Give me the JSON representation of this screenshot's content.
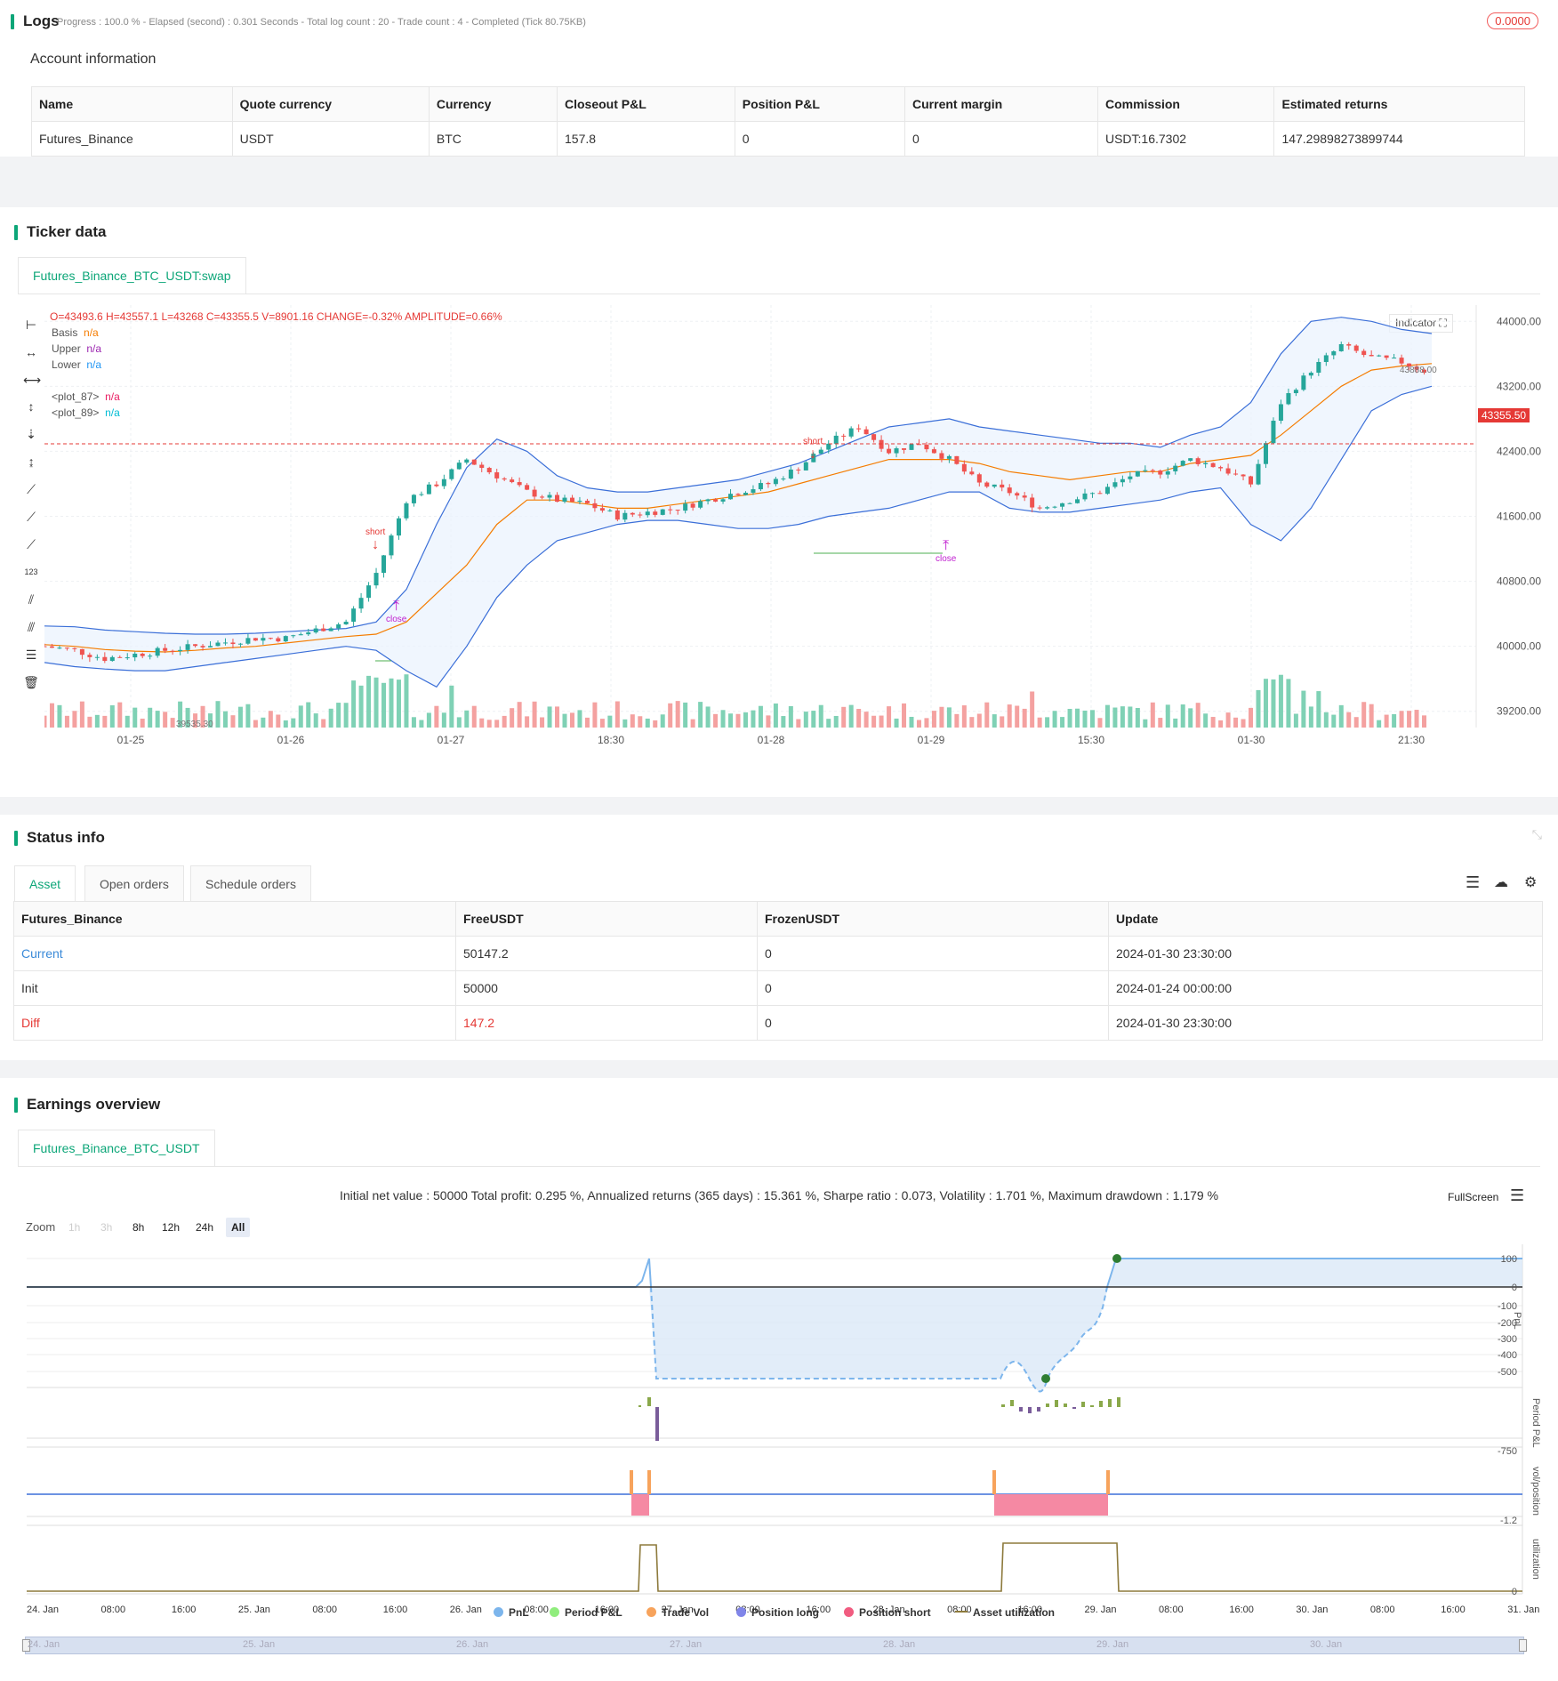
{
  "logs": {
    "title": "Logs",
    "progress_text": "Progress : 100.0 % - Elapsed (second) : 0.301  Seconds - Total log count : 20 - Trade count : 4 - Completed (Tick 80.75KB)",
    "badge": "0.0000"
  },
  "account": {
    "title": "Account information",
    "headers": [
      "Name",
      "Quote currency",
      "Currency",
      "Closeout P&L",
      "Position P&L",
      "Current margin",
      "Commission",
      "Estimated returns"
    ],
    "row": [
      "Futures_Binance",
      "USDT",
      "BTC",
      "157.8",
      "0",
      "0",
      "USDT:16.7302",
      "147.29898273899744"
    ]
  },
  "ticker": {
    "title": "Ticker data",
    "tab": "Futures_Binance_BTC_USDT:swap",
    "ohlc_line": "O=43493.6 H=43557.1 L=43268 C=43355.5 V=8901.16 CHANGE=-0.32% AMPLITUDE=0.66%",
    "legend": [
      {
        "name": "Basis",
        "value": "n/a",
        "color": "#f57c00"
      },
      {
        "name": "Upper",
        "value": "n/a",
        "color": "#9c27b0"
      },
      {
        "name": "Lower",
        "value": "n/a",
        "color": "#2196f3"
      }
    ],
    "plots": [
      {
        "name": "<plot_87>",
        "value": "n/a",
        "color": "#e91e63"
      },
      {
        "name": "<plot_89>",
        "value": "n/a",
        "color": "#00bcd4"
      }
    ],
    "indicator_btn": "Indicator",
    "price_badge": "43355.50",
    "high_label": "43888.00",
    "low_label": "39535.30",
    "y_ticks": [
      "44000.00",
      "43200.00",
      "42400.00",
      "41600.00",
      "40800.00",
      "40000.00",
      "39200.00"
    ],
    "x_ticks": [
      "01-25",
      "01-26",
      "01-27",
      "18:30",
      "01-28",
      "01-29",
      "15:30",
      "01-30",
      "21:30"
    ],
    "markers": [
      "short",
      "close",
      "short",
      "close"
    ]
  },
  "status": {
    "title": "Status info",
    "tabs": [
      "Asset",
      "Open orders",
      "Schedule orders"
    ],
    "headers": [
      "Futures_Binance",
      "FreeUSDT",
      "FrozenUSDT",
      "Update"
    ],
    "rows": [
      [
        "Current",
        "50147.2",
        "0",
        "2024-01-30 23:30:00"
      ],
      [
        "Init",
        "50000",
        "0",
        "2024-01-24 00:00:00"
      ],
      [
        "Diff",
        "147.2",
        "0",
        "2024-01-30 23:30:00"
      ]
    ]
  },
  "earnings": {
    "title": "Earnings overview",
    "tab": "Futures_Binance_BTC_USDT",
    "summary": "Initial net value : 50000 Total profit: 0.295 %, Annualized returns (365 days) : 15.361 %, Sharpe ratio : 0.073, Volatility : 1.701 %, Maximum drawdown : 1.179 %",
    "fullscreen": "FullScreen",
    "zoom_label": "Zoom",
    "zoom_buttons": [
      "1h",
      "3h",
      "8h",
      "12h",
      "24h",
      "All"
    ],
    "pnl_ticks": [
      "100",
      "0",
      "-100",
      "-200",
      "-300",
      "-400",
      "-500"
    ],
    "period_tick": "-750",
    "vol_tick": "-1.2",
    "util_tick": "0",
    "axis_titles": [
      "PnL",
      "Period P&L",
      "vol/position",
      "utilization"
    ],
    "x_ticks": [
      "24. Jan",
      "08:00",
      "16:00",
      "25. Jan",
      "08:00",
      "16:00",
      "26. Jan",
      "08:00",
      "16:00",
      "27. Jan",
      "08:00",
      "16:00",
      "28. Jan",
      "08:00",
      "16:00",
      "29. Jan",
      "08:00",
      "16:00",
      "30. Jan",
      "08:00",
      "16:00",
      "31. Jan"
    ],
    "legend": [
      {
        "name": "PnL",
        "color": "#7cb5ec"
      },
      {
        "name": "Period P&L",
        "color": "#90ed7d"
      },
      {
        "name": "Trade Vol",
        "color": "#f7a35c"
      },
      {
        "name": "Position long",
        "color": "#8085e9"
      },
      {
        "name": "Position short",
        "color": "#f15c80"
      },
      {
        "name": "Asset utilization",
        "color": "#8d7a3c"
      }
    ],
    "navigator_labels": [
      "24. Jan",
      "25. Jan",
      "26. Jan",
      "27. Jan",
      "28. Jan",
      "29. Jan",
      "30. Jan"
    ]
  },
  "chart_data": {
    "type": "candlestick",
    "bb_upper": [
      40250,
      40240,
      40200,
      40180,
      40160,
      40150,
      40150,
      40160,
      40180,
      40200,
      40220,
      40300,
      40700,
      41500,
      42200,
      42550,
      42400,
      42100,
      41950,
      41900,
      41900,
      41950,
      42000,
      42050,
      42150,
      42250,
      42400,
      42550,
      42700,
      42750,
      42800,
      42700,
      42650,
      42600,
      42550,
      42500,
      42500,
      42450,
      42600,
      42700,
      43000,
      43600,
      44000,
      44050,
      44000,
      43900,
      43850
    ],
    "bb_lower": [
      39800,
      39750,
      39720,
      39700,
      39700,
      39750,
      39800,
      39850,
      39900,
      39950,
      40000,
      39950,
      39700,
      39500,
      40000,
      40600,
      41000,
      41300,
      41400,
      41500,
      41550,
      41550,
      41500,
      41450,
      41450,
      41500,
      41600,
      41650,
      41700,
      41800,
      41900,
      41900,
      41700,
      41650,
      41650,
      41700,
      41750,
      41800,
      41900,
      41950,
      41500,
      41300,
      41700,
      42300,
      42900,
      43100,
      43200
    ],
    "bb_basis": [
      40020,
      40000,
      39960,
      39940,
      39930,
      39950,
      39980,
      40000,
      40040,
      40080,
      40120,
      40150,
      40300,
      40650,
      41000,
      41500,
      41800,
      41800,
      41750,
      41700,
      41700,
      41750,
      41800,
      41850,
      41900,
      42000,
      42100,
      42200,
      42300,
      42300,
      42300,
      42250,
      42150,
      42100,
      42050,
      42100,
      42150,
      42150,
      42250,
      42300,
      42350,
      42600,
      42900,
      43200,
      43400,
      43450,
      43480
    ],
    "close": [
      40000,
      39950,
      39850,
      39900,
      39950,
      40000,
      40050,
      40100,
      40100,
      40200,
      40300,
      40900,
      41800,
      42000,
      42300,
      42100,
      41900,
      41800,
      41750,
      41600,
      41650,
      41700,
      41800,
      41900,
      42000,
      42200,
      42500,
      42700,
      42400,
      42500,
      42300,
      42000,
      41900,
      41700,
      41800,
      41900,
      42100,
      42150,
      42300,
      42200,
      42000,
      43000,
      43400,
      43700,
      43550,
      43500,
      43355.5
    ]
  }
}
